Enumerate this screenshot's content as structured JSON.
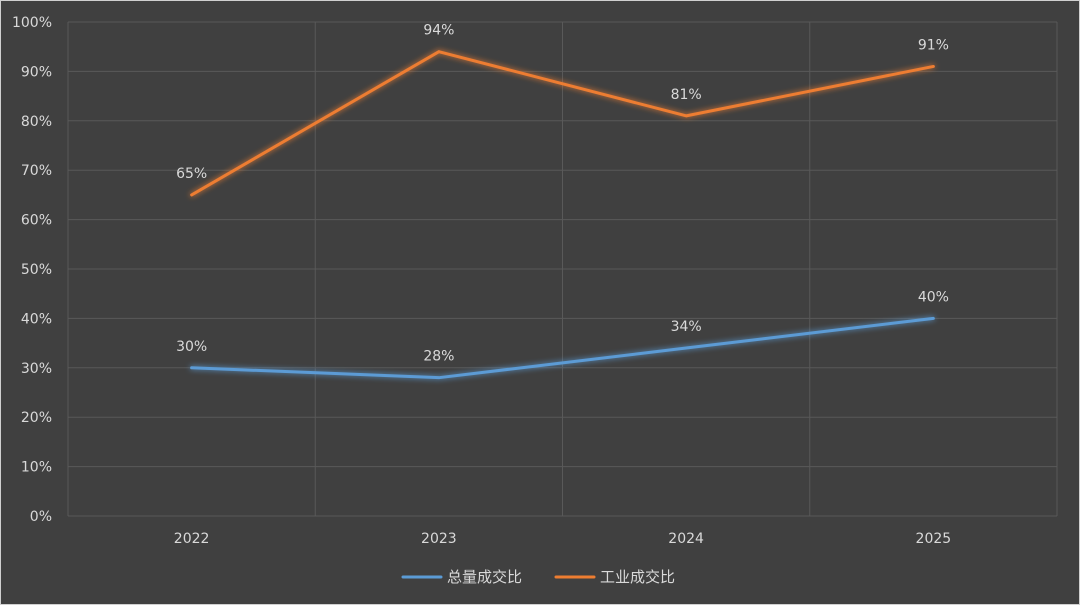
{
  "chart_data": {
    "type": "line",
    "categories": [
      "2022",
      "2023",
      "2024",
      "2025"
    ],
    "series": [
      {
        "name": "总量成交比",
        "values": [
          30,
          28,
          34,
          40
        ],
        "labels": [
          "30%",
          "28%",
          "34%",
          "40%"
        ],
        "color": "#5b9bd5"
      },
      {
        "name": "工业成交比",
        "values": [
          65,
          94,
          81,
          91
        ],
        "labels": [
          "65%",
          "94%",
          "81%",
          "91%"
        ],
        "color": "#ed7d31"
      }
    ],
    "y_ticks": [
      "0%",
      "10%",
      "20%",
      "30%",
      "40%",
      "50%",
      "60%",
      "70%",
      "80%",
      "90%",
      "100%"
    ],
    "ylim": [
      0,
      100
    ],
    "grid": true,
    "legend_position": "bottom",
    "background": "#404040",
    "gridline_color": "#595959"
  }
}
